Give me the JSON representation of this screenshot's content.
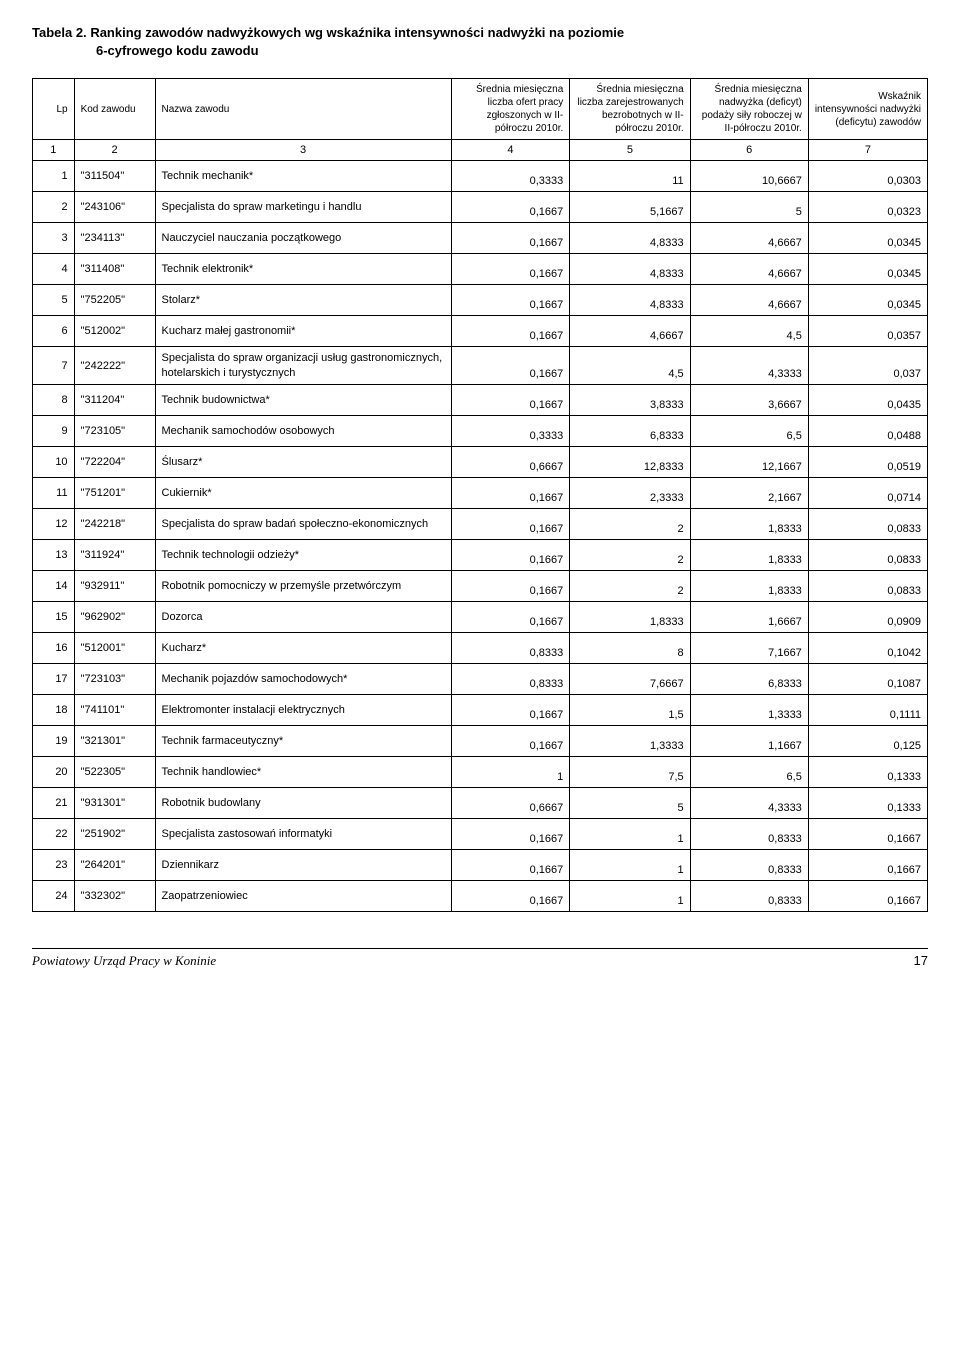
{
  "title": {
    "label": "Tabela 2.",
    "text_line1": "Ranking zawodów nadwyżkowych wg wskaźnika intensywności nadwyżki na poziomie",
    "text_line2": "6-cyfrowego kodu zawodu"
  },
  "columns": {
    "lp": "Lp",
    "kod": "Kod zawodu",
    "nazwa": "Nazwa zawodu",
    "c4": "Średnia miesięczna liczba ofert pracy zgłoszonych w II-półroczu 2010r.",
    "c5": "Średnia miesięczna liczba zarejestrowanych bezrobotnych w II-półroczu 2010r.",
    "c6": "Średnia miesięczna nadwyżka (deficyt) podaży siły roboczej w II-półroczu 2010r.",
    "c7": "Wskaźnik intensywności nadwyżki (deficytu) zawodów"
  },
  "hnums": {
    "c1": "1",
    "c2": "2",
    "c3": "3",
    "c4": "4",
    "c5": "5",
    "c6": "6",
    "c7": "7"
  },
  "rows": [
    {
      "lp": "1",
      "kod": "\"311504\"",
      "nazwa": "Technik mechanik*",
      "v4": "0,3333",
      "v5": "11",
      "v6": "10,6667",
      "v7": "0,0303"
    },
    {
      "lp": "2",
      "kod": "\"243106\"",
      "nazwa": "Specjalista do spraw marketingu i handlu",
      "v4": "0,1667",
      "v5": "5,1667",
      "v6": "5",
      "v7": "0,0323"
    },
    {
      "lp": "3",
      "kod": "\"234113\"",
      "nazwa": "Nauczyciel nauczania początkowego",
      "v4": "0,1667",
      "v5": "4,8333",
      "v6": "4,6667",
      "v7": "0,0345"
    },
    {
      "lp": "4",
      "kod": "\"311408\"",
      "nazwa": "Technik elektronik*",
      "v4": "0,1667",
      "v5": "4,8333",
      "v6": "4,6667",
      "v7": "0,0345"
    },
    {
      "lp": "5",
      "kod": "\"752205\"",
      "nazwa": "Stolarz*",
      "v4": "0,1667",
      "v5": "4,8333",
      "v6": "4,6667",
      "v7": "0,0345"
    },
    {
      "lp": "6",
      "kod": "\"512002\"",
      "nazwa": "Kucharz małej gastronomii*",
      "v4": "0,1667",
      "v5": "4,6667",
      "v6": "4,5",
      "v7": "0,0357"
    },
    {
      "lp": "7",
      "kod": "\"242222\"",
      "nazwa": "Specjalista do spraw organizacji usług gastronomicznych, hotelarskich i turystycznych",
      "v4": "0,1667",
      "v5": "4,5",
      "v6": "4,3333",
      "v7": "0,037"
    },
    {
      "lp": "8",
      "kod": "\"311204\"",
      "nazwa": "Technik budownictwa*",
      "v4": "0,1667",
      "v5": "3,8333",
      "v6": "3,6667",
      "v7": "0,0435"
    },
    {
      "lp": "9",
      "kod": "\"723105\"",
      "nazwa": "Mechanik samochodów osobowych",
      "v4": "0,3333",
      "v5": "6,8333",
      "v6": "6,5",
      "v7": "0,0488"
    },
    {
      "lp": "10",
      "kod": "\"722204\"",
      "nazwa": "Ślusarz*",
      "v4": "0,6667",
      "v5": "12,8333",
      "v6": "12,1667",
      "v7": "0,0519"
    },
    {
      "lp": "11",
      "kod": "\"751201\"",
      "nazwa": "Cukiernik*",
      "v4": "0,1667",
      "v5": "2,3333",
      "v6": "2,1667",
      "v7": "0,0714"
    },
    {
      "lp": "12",
      "kod": "\"242218\"",
      "nazwa": "Specjalista do spraw badań społeczno-ekonomicznych",
      "v4": "0,1667",
      "v5": "2",
      "v6": "1,8333",
      "v7": "0,0833"
    },
    {
      "lp": "13",
      "kod": "\"311924\"",
      "nazwa": "Technik technologii odzieży*",
      "v4": "0,1667",
      "v5": "2",
      "v6": "1,8333",
      "v7": "0,0833"
    },
    {
      "lp": "14",
      "kod": "\"932911\"",
      "nazwa": "Robotnik pomocniczy w przemyśle przetwórczym",
      "v4": "0,1667",
      "v5": "2",
      "v6": "1,8333",
      "v7": "0,0833"
    },
    {
      "lp": "15",
      "kod": "\"962902\"",
      "nazwa": "Dozorca",
      "v4": "0,1667",
      "v5": "1,8333",
      "v6": "1,6667",
      "v7": "0,0909"
    },
    {
      "lp": "16",
      "kod": "\"512001\"",
      "nazwa": "Kucharz*",
      "v4": "0,8333",
      "v5": "8",
      "v6": "7,1667",
      "v7": "0,1042"
    },
    {
      "lp": "17",
      "kod": "\"723103\"",
      "nazwa": "Mechanik pojazdów samochodowych*",
      "v4": "0,8333",
      "v5": "7,6667",
      "v6": "6,8333",
      "v7": "0,1087"
    },
    {
      "lp": "18",
      "kod": "\"741101\"",
      "nazwa": "Elektromonter instalacji elektrycznych",
      "v4": "0,1667",
      "v5": "1,5",
      "v6": "1,3333",
      "v7": "0,1111"
    },
    {
      "lp": "19",
      "kod": "\"321301\"",
      "nazwa": "Technik farmaceutyczny*",
      "v4": "0,1667",
      "v5": "1,3333",
      "v6": "1,1667",
      "v7": "0,125"
    },
    {
      "lp": "20",
      "kod": "\"522305\"",
      "nazwa": "Technik handlowiec*",
      "v4": "1",
      "v5": "7,5",
      "v6": "6,5",
      "v7": "0,1333"
    },
    {
      "lp": "21",
      "kod": "\"931301\"",
      "nazwa": "Robotnik budowlany",
      "v4": "0,6667",
      "v5": "5",
      "v6": "4,3333",
      "v7": "0,1333"
    },
    {
      "lp": "22",
      "kod": "\"251902\"",
      "nazwa": "Specjalista zastosowań informatyki",
      "v4": "0,1667",
      "v5": "1",
      "v6": "0,8333",
      "v7": "0,1667"
    },
    {
      "lp": "23",
      "kod": "\"264201\"",
      "nazwa": "Dziennikarz",
      "v4": "0,1667",
      "v5": "1",
      "v6": "0,8333",
      "v7": "0,1667"
    },
    {
      "lp": "24",
      "kod": "\"332302\"",
      "nazwa": "Zaopatrzeniowiec",
      "v4": "0,1667",
      "v5": "1",
      "v6": "0,8333",
      "v7": "0,1667"
    }
  ],
  "footer": {
    "left": "Powiatowy Urząd Pracy w Koninie",
    "page": "17"
  }
}
